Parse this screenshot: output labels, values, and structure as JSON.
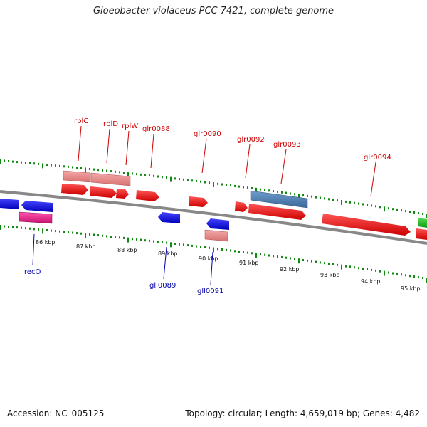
{
  "title": "Gloeobacter violaceus PCC 7421, complete genome",
  "footer": {
    "accession": "Accession: NC_005125",
    "summary": "Topology: circular; Length: 4,659,019 bp; Genes: 4,482"
  },
  "colors": {
    "forward_gene": "#ee1111",
    "forward_rrna_like": "#e88888",
    "forward_blue": "#4a7ab0",
    "reverse_gene": "#1111ee",
    "reverse_pink": "#e8208a",
    "reverse_light": "#e88888",
    "green_gene": "#22bb22",
    "backbone": "#888888",
    "tick": "#118811",
    "label_forward": "#cc0000",
    "label_reverse": "#0000aa"
  },
  "kbp_labels": [
    "86 kbp",
    "87 kbp",
    "88 kbp",
    "89 kbp",
    "90 kbp",
    "91 kbp",
    "92 kbp",
    "93 kbp",
    "94 kbp",
    "95 kbp"
  ],
  "forward_labels": [
    "rplC",
    "rplD",
    "rplW",
    "glr0088",
    "glr0090",
    "glr0092",
    "glr0093",
    "glr0094"
  ],
  "reverse_labels": [
    "recO",
    "gll0089",
    "gll0091"
  ]
}
